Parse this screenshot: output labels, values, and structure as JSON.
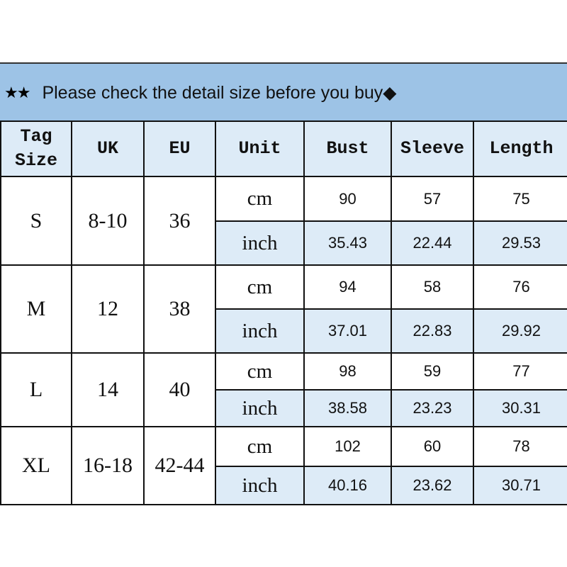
{
  "banner": {
    "stars": "★★",
    "text": "Please check the detail size before you buy◆"
  },
  "headers": {
    "tag_size_1": "Tag",
    "tag_size_2": "Size",
    "uk": "UK",
    "eu": "EU",
    "unit": "Unit",
    "bust": "Bust",
    "sleeve": "Sleeve",
    "length": "Length"
  },
  "colors": {
    "banner": "#9dc3e6",
    "header_fill": "#ddebf7",
    "inch_row_fill": "#ddebf7"
  },
  "rows": [
    {
      "tag": "S",
      "uk": "8-10",
      "eu": "36",
      "cm": {
        "unit": "cm",
        "bust": "90",
        "sleeve": "57",
        "length": "75"
      },
      "inch": {
        "unit": "inch",
        "bust": "35.43",
        "sleeve": "22.44",
        "length": "29.53"
      }
    },
    {
      "tag": "M",
      "uk": "12",
      "eu": "38",
      "cm": {
        "unit": "cm",
        "bust": "94",
        "sleeve": "58",
        "length": "76"
      },
      "inch": {
        "unit": "inch",
        "bust": "37.01",
        "sleeve": "22.83",
        "length": "29.92"
      }
    },
    {
      "tag": "L",
      "uk": "14",
      "eu": "40",
      "cm": {
        "unit": "cm",
        "bust": "98",
        "sleeve": "59",
        "length": "77"
      },
      "inch": {
        "unit": "inch",
        "bust": "38.58",
        "sleeve": "23.23",
        "length": "30.31"
      }
    },
    {
      "tag": "XL",
      "uk": "16-18",
      "eu": "42-44",
      "cm": {
        "unit": "cm",
        "bust": "102",
        "sleeve": "60",
        "length": "78"
      },
      "inch": {
        "unit": "inch",
        "bust": "40.16",
        "sleeve": "23.62",
        "length": "30.71"
      }
    }
  ]
}
